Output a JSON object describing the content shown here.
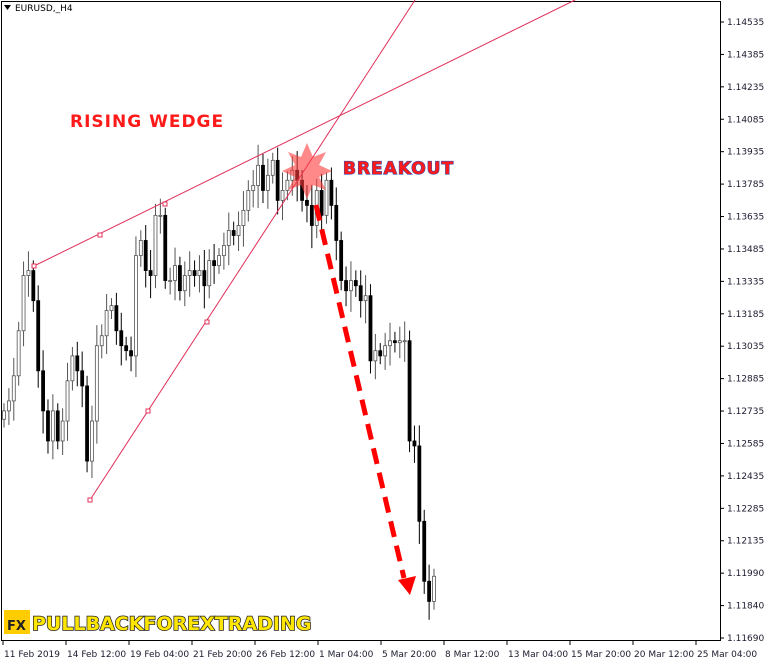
{
  "chart_data": {
    "type": "candlestick",
    "title": "EURUSD,_H4",
    "ylim": [
      1.1169,
      1.14535
    ],
    "y_ticks": [
      "1.14535",
      "1.14385",
      "1.14235",
      "1.14085",
      "1.13935",
      "1.13785",
      "1.13635",
      "1.13485",
      "1.13335",
      "1.13185",
      "1.13035",
      "1.12885",
      "1.12735",
      "1.12585",
      "1.12435",
      "1.12285",
      "1.12135",
      "1.11990",
      "1.11840",
      "1.11690"
    ],
    "x_ticks": [
      "11 Feb 2019",
      "14 Feb 12:00",
      "19 Feb 04:00",
      "21 Feb 20:00",
      "26 Feb 12:00",
      "1 Mar 04:00",
      "5 Mar 20:00",
      "8 Mar 12:00",
      "13 Mar 04:00",
      "15 Mar 20:00",
      "20 Mar 12:00",
      "25 Mar 04:00"
    ],
    "first_open": 1.127,
    "closes": [
      1.12739,
      1.12785,
      1.12901,
      1.13109,
      1.13364,
      1.13387,
      1.13248,
      1.12924,
      1.12739,
      1.126,
      1.12739,
      1.126,
      1.12692,
      1.12878,
      1.12993,
      1.12924,
      1.12854,
      1.12507,
      1.12692,
      1.1304,
      1.13086,
      1.13202,
      1.13225,
      1.13109,
      1.1304,
      1.13017,
      1.12993,
      1.13456,
      1.13526,
      1.13387,
      1.13364,
      1.13642,
      1.13642,
      1.13341,
      1.13341,
      1.1341,
      1.13294,
      1.13364,
      1.13387,
      1.13364,
      1.13387,
      1.13317,
      1.13433,
      1.1341,
      1.13456,
      1.13503,
      1.13572,
      1.13549,
      1.13595,
      1.13665,
      1.13757,
      1.1378,
      1.13873,
      1.13757,
      1.13827,
      1.13896,
      1.13711,
      1.13757,
      1.13804,
      1.1385,
      1.13804,
      1.13711,
      1.13688,
      1.13595,
      1.13757,
      1.13642,
      1.13804,
      1.13688,
      1.13526,
      1.13341,
      1.13294,
      1.13341,
      1.13317,
      1.13248,
      1.13271,
      1.1297,
      1.13017,
      1.12993,
      1.1304,
      1.13063,
      1.13054,
      1.13063,
      1.13063,
      1.126,
      1.12577,
      1.12229,
      1.11952,
      1.11859,
      1.11975
    ],
    "annotations": {
      "pattern_label": "RISING WEDGE",
      "breakout_label": "BREAKOUT"
    },
    "colors": {
      "candle_up": "#ffffff",
      "candle_down": "#000000",
      "wedge_lines": "#e0305a",
      "arrow": "#ff0000",
      "label": "#ff1a1a",
      "breakout_outline": "#3a4fb0"
    }
  },
  "logo": {
    "badge": "FX",
    "text": "PULLBACKFOREXTRADING",
    "color": "#ffe600"
  }
}
